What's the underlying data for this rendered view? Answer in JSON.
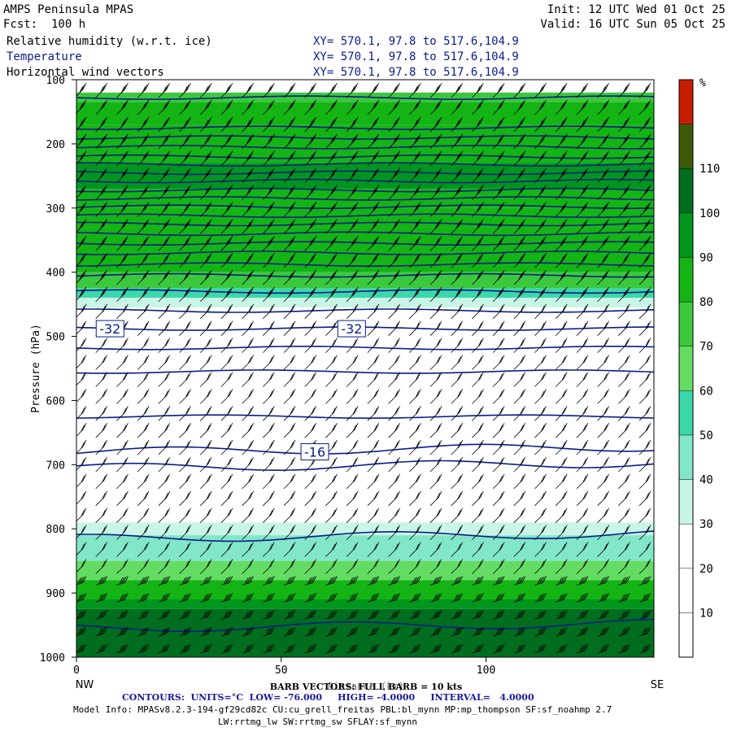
{
  "header": {
    "title": "AMPS Peninsula MPAS",
    "fcst": "Fcst:  100 h",
    "init": "Init: 12 UTC Wed 01 Oct 25",
    "valid": "Valid: 16 UTC Sun 05 Oct 25",
    "fields": [
      {
        "label": "Relative humidity (w.r.t. ice)",
        "xy": "XY= 570.1, 97.8 to 517.6,104.9",
        "color": "#000000"
      },
      {
        "label": "Temperature",
        "xy": "XY= 570.1, 97.8 to 517.6,104.9",
        "color": "#0a1c8c"
      },
      {
        "label": "Horizontal wind vectors",
        "xy": "XY= 570.1, 97.8 to 517.6,104.9",
        "color": "#000000"
      }
    ]
  },
  "chart_data": {
    "type": "heatmap",
    "title": "AMPS Peninsula MPAS",
    "xlabel": "Distance (km)",
    "ylabel": "Pressure (hPa)",
    "xlim": [
      0,
      141
    ],
    "ylim": [
      1000,
      100
    ],
    "x_ticks": [
      0,
      50,
      100
    ],
    "y_ticks": [
      100,
      200,
      300,
      400,
      500,
      600,
      700,
      800,
      900,
      1000
    ],
    "x_end_labels": {
      "left": "NW",
      "right": "SE"
    },
    "colorbar": {
      "unit": "%",
      "tick_labels": [
        "10",
        "20",
        "30",
        "40",
        "50",
        "60",
        "70",
        "80",
        "90",
        "100",
        "110"
      ],
      "levels": [
        0,
        10,
        20,
        30,
        40,
        50,
        60,
        70,
        80,
        90,
        100,
        110,
        120
      ],
      "colors": [
        "#ffffff",
        "#ffffff",
        "#ffffff",
        "#c8f5e6",
        "#82e6c8",
        "#3cd7aa",
        "#64dc64",
        "#3cc83c",
        "#14b414",
        "#00961e",
        "#006e1e",
        "#3c5a0a",
        "#c81e00"
      ]
    },
    "rh_layers": [
      {
        "top": 100,
        "bottom": 120,
        "value": 0
      },
      {
        "top": 120,
        "bottom": 135,
        "value": 75
      },
      {
        "top": 135,
        "bottom": 170,
        "value": 85
      },
      {
        "top": 170,
        "bottom": 230,
        "value": 88
      },
      {
        "top": 230,
        "bottom": 270,
        "value": 95
      },
      {
        "top": 270,
        "bottom": 300,
        "value": 88
      },
      {
        "top": 300,
        "bottom": 330,
        "value": 82
      },
      {
        "top": 330,
        "bottom": 400,
        "value": 85
      },
      {
        "top": 400,
        "bottom": 425,
        "value": 75
      },
      {
        "top": 425,
        "bottom": 440,
        "value": 55
      },
      {
        "top": 440,
        "bottom": 455,
        "value": 35
      },
      {
        "top": 455,
        "bottom": 740,
        "value": 0
      },
      {
        "top": 740,
        "bottom": 790,
        "value": 25
      },
      {
        "top": 790,
        "bottom": 810,
        "value": 35
      },
      {
        "top": 810,
        "bottom": 850,
        "value": 45
      },
      {
        "top": 850,
        "bottom": 880,
        "value": 65
      },
      {
        "top": 880,
        "bottom": 910,
        "value": 85
      },
      {
        "top": 910,
        "bottom": 925,
        "value": 95
      },
      {
        "top": 925,
        "bottom": 1000,
        "value": 105
      }
    ],
    "temperature_contours": {
      "units": "°C",
      "interval": 4,
      "levels_p": [
        128,
        175,
        190,
        205,
        220,
        232,
        245,
        258,
        272,
        285,
        298,
        312,
        325,
        340,
        355,
        370,
        388,
        405,
        430,
        460,
        488,
        518,
        555,
        625,
        680,
        705,
        815,
        955
      ],
      "labels": [
        {
          "text": "-32",
          "x": 8,
          "p": 488
        },
        {
          "text": "-32",
          "x": 67,
          "p": 488
        },
        {
          "text": "-16",
          "x": 58,
          "p": 680
        }
      ]
    },
    "wind_barbs": {
      "full_barb_kts": 10
    }
  },
  "footer": {
    "barb": "BARB VECTORS: FULL BARB = 10 kts",
    "contours": "CONTOURS:  UNITS=°C  LOW= -76.000     HIGH= -4.0000     INTERVAL=   4.0000",
    "model": "Model Info: MPASv8.2.3-194-gf29cd82c CU:cu_grell_freitas PBL:bl_mynn MP:mp_thompson SF:sf_noahmp 2.7",
    "phys": "LW:rrtmg_lw SW:rrtmg_sw SFLAY:sf_mynn"
  }
}
